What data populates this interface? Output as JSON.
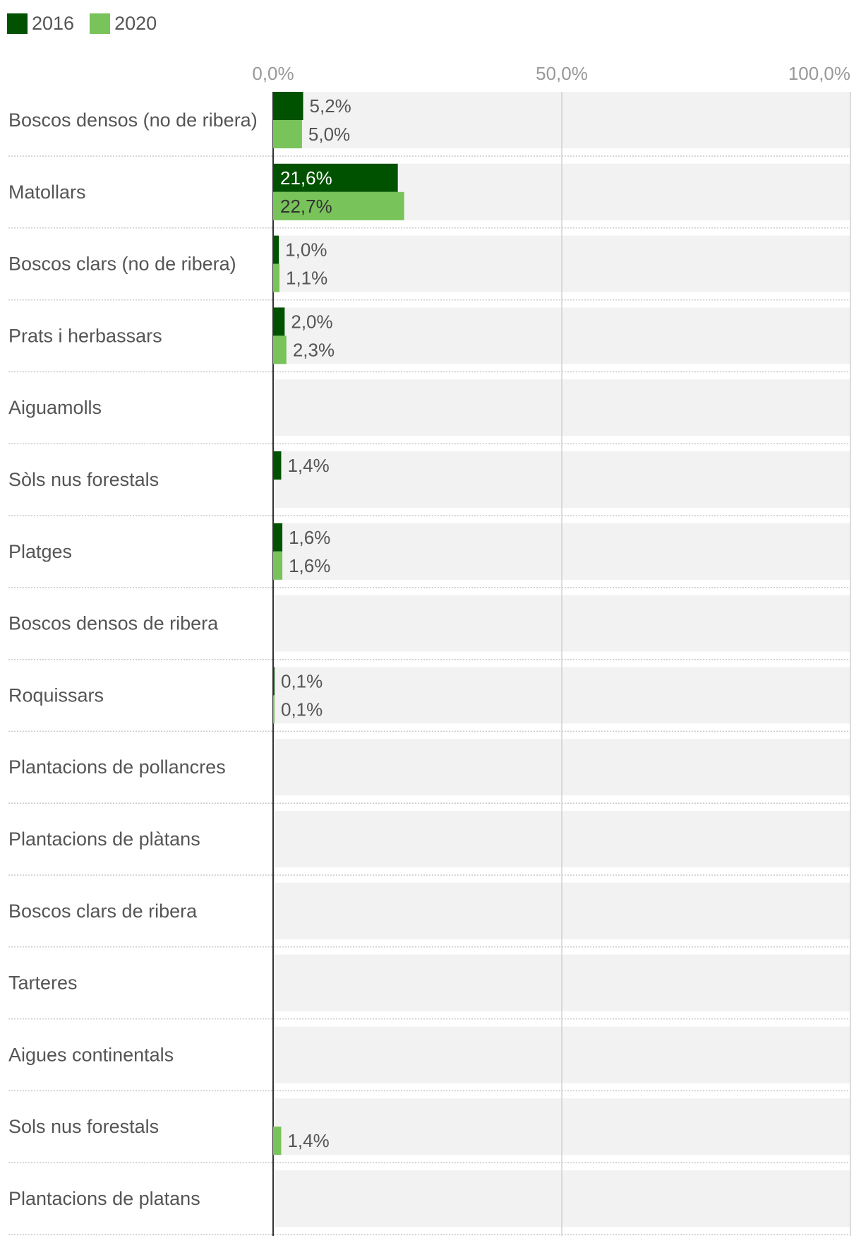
{
  "legend": {
    "items": [
      {
        "label": "2016",
        "color": "#005200"
      },
      {
        "label": "2020",
        "color": "#78c35a"
      }
    ]
  },
  "chart_data": {
    "type": "bar",
    "orientation": "horizontal",
    "grouped": true,
    "title": "",
    "xlabel": "",
    "ylabel": "",
    "xlim": [
      0,
      100
    ],
    "x_ticks": [
      {
        "value": 0,
        "label": "0,0%"
      },
      {
        "value": 50,
        "label": "50,0%"
      },
      {
        "value": 100,
        "label": "100,0%"
      }
    ],
    "grid": true,
    "legend_position": "top-left",
    "categories": [
      "Boscos densos (no de ribera)",
      "Matollars",
      "Boscos clars (no de ribera)",
      "Prats i herbassars",
      "Aiguamolls",
      "Sòls nus forestals",
      "Platges",
      "Boscos densos de ribera",
      "Roquissars",
      "Plantacions de pollancres",
      "Plantacions de plàtans",
      "Boscos clars de ribera",
      "Tarteres",
      "Aigues continentals",
      "Sols nus forestals",
      "Plantacions de platans"
    ],
    "series": [
      {
        "name": "2016",
        "color": "#005200",
        "values": [
          5.2,
          21.6,
          1.0,
          2.0,
          null,
          1.4,
          1.6,
          null,
          0.1,
          null,
          null,
          null,
          null,
          null,
          null,
          null
        ],
        "labels": [
          "5,2%",
          "21,6%",
          "1,0%",
          "2,0%",
          null,
          "1,4%",
          "1,6%",
          null,
          "0,1%",
          null,
          null,
          null,
          null,
          null,
          null,
          null
        ]
      },
      {
        "name": "2020",
        "color": "#78c35a",
        "values": [
          5.0,
          22.7,
          1.1,
          2.3,
          null,
          null,
          1.6,
          null,
          0.1,
          null,
          null,
          null,
          null,
          null,
          1.4,
          null
        ],
        "labels": [
          "5,0%",
          "22,7%",
          "1,1%",
          "2,3%",
          null,
          null,
          "1,6%",
          null,
          "0,1%",
          null,
          null,
          null,
          null,
          null,
          "1,4%",
          null
        ]
      }
    ]
  }
}
